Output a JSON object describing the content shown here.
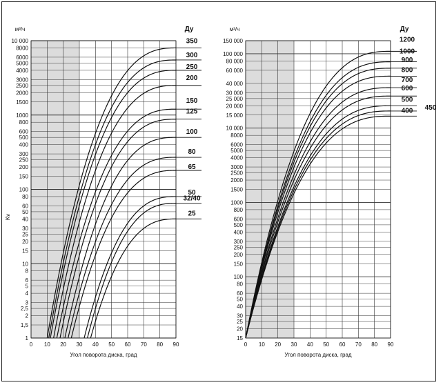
{
  "chart_data": [
    {
      "type": "line",
      "unit_label": "м³/ч",
      "dn_label": "Ду",
      "ylabel": "Kv",
      "xlabel": "Угол поворота диска, град",
      "xlim": [
        0,
        90
      ],
      "ylim": [
        1,
        10000
      ],
      "yscale": "log",
      "grid": true,
      "shaded_band_x": [
        0,
        30
      ],
      "x_ticks": [
        "0",
        "10",
        "20",
        "30",
        "40",
        "50",
        "60",
        "70",
        "80",
        "90"
      ],
      "y_ticks": [
        {
          "v": 1,
          "t": "1"
        },
        {
          "v": 1.5,
          "t": "1,5"
        },
        {
          "v": 2,
          "t": "2"
        },
        {
          "v": 2.5,
          "t": "2,5"
        },
        {
          "v": 3,
          "t": "3"
        },
        {
          "v": 4,
          "t": "4"
        },
        {
          "v": 5,
          "t": "5"
        },
        {
          "v": 6,
          "t": "6"
        },
        {
          "v": 8,
          "t": "8"
        },
        {
          "v": 10,
          "t": "10"
        },
        {
          "v": 15,
          "t": "15"
        },
        {
          "v": 20,
          "t": "20"
        },
        {
          "v": 25,
          "t": "25"
        },
        {
          "v": 30,
          "t": "30"
        },
        {
          "v": 40,
          "t": "40"
        },
        {
          "v": 50,
          "t": "50"
        },
        {
          "v": 60,
          "t": "60"
        },
        {
          "v": 80,
          "t": "80"
        },
        {
          "v": 100,
          "t": "100"
        },
        {
          "v": 150,
          "t": "150"
        },
        {
          "v": 200,
          "t": "200"
        },
        {
          "v": 250,
          "t": "250"
        },
        {
          "v": 300,
          "t": "300"
        },
        {
          "v": 400,
          "t": "400"
        },
        {
          "v": 500,
          "t": "500"
        },
        {
          "v": 600,
          "t": "600"
        },
        {
          "v": 800,
          "t": "800"
        },
        {
          "v": 1000,
          "t": "1000"
        },
        {
          "v": 1500,
          "t": "1500"
        },
        {
          "v": 2000,
          "t": "2000"
        },
        {
          "v": 2500,
          "t": "2500"
        },
        {
          "v": 3000,
          "t": "3000"
        },
        {
          "v": 4000,
          "t": "4000"
        },
        {
          "v": 5000,
          "t": "5000"
        },
        {
          "v": 6000,
          "t": "6000"
        },
        {
          "v": 8000,
          "t": "8000"
        },
        {
          "v": 10000,
          "t": "10 000"
        }
      ],
      "series": [
        {
          "name": "350",
          "x_start": 10,
          "kv_max": 8000
        },
        {
          "name": "300",
          "x_start": 11,
          "kv_max": 5500
        },
        {
          "name": "250",
          "x_start": 12,
          "kv_max": 4000
        },
        {
          "name": "200",
          "x_start": 14,
          "kv_max": 2500
        },
        {
          "name": "150",
          "x_start": 16,
          "kv_max": 1200
        },
        {
          "name": "125",
          "x_start": 18,
          "kv_max": 880
        },
        {
          "name": "100",
          "x_start": 21,
          "kv_max": 500
        },
        {
          "name": "80",
          "x_start": 23,
          "kv_max": 270
        },
        {
          "name": "65",
          "x_start": 25,
          "kv_max": 180
        },
        {
          "name": "50",
          "x_start": 33,
          "kv_max": 80
        },
        {
          "name": "32/40",
          "x_start": 35,
          "kv_max": 65
        },
        {
          "name": "25",
          "x_start": 37,
          "kv_max": 40
        }
      ]
    },
    {
      "type": "line",
      "unit_label": "м³/ч",
      "dn_label": "Ду",
      "ylabel": "",
      "xlabel": "Угол поворота диска, град",
      "xlim": [
        0,
        90
      ],
      "ylim": [
        15,
        150000
      ],
      "yscale": "log",
      "grid": true,
      "shaded_band_x": [
        0,
        30
      ],
      "x_ticks": [
        "0",
        "10",
        "20",
        "30",
        "40",
        "50",
        "60",
        "70",
        "80",
        "90"
      ],
      "y_ticks": [
        {
          "v": 15,
          "t": "15"
        },
        {
          "v": 20,
          "t": "20"
        },
        {
          "v": 25,
          "t": "25"
        },
        {
          "v": 30,
          "t": "30"
        },
        {
          "v": 40,
          "t": "40"
        },
        {
          "v": 50,
          "t": "50"
        },
        {
          "v": 60,
          "t": "60"
        },
        {
          "v": 80,
          "t": "80"
        },
        {
          "v": 100,
          "t": "100"
        },
        {
          "v": 150,
          "t": "150"
        },
        {
          "v": 200,
          "t": "200"
        },
        {
          "v": 250,
          "t": "250"
        },
        {
          "v": 300,
          "t": "300"
        },
        {
          "v": 400,
          "t": "400"
        },
        {
          "v": 500,
          "t": "500"
        },
        {
          "v": 600,
          "t": "600"
        },
        {
          "v": 800,
          "t": "800"
        },
        {
          "v": 1000,
          "t": "1000"
        },
        {
          "v": 1500,
          "t": "1500"
        },
        {
          "v": 2000,
          "t": "2000"
        },
        {
          "v": 2500,
          "t": "2500"
        },
        {
          "v": 3000,
          "t": "3000"
        },
        {
          "v": 4000,
          "t": "4000"
        },
        {
          "v": 5000,
          "t": "5000"
        },
        {
          "v": 6000,
          "t": "6000"
        },
        {
          "v": 8000,
          "t": "8000"
        },
        {
          "v": 10000,
          "t": "10 000"
        },
        {
          "v": 15000,
          "t": "15 000"
        },
        {
          "v": 20000,
          "t": "20 000"
        },
        {
          "v": 25000,
          "t": "25 000"
        },
        {
          "v": 30000,
          "t": "30 000"
        },
        {
          "v": 40000,
          "t": "40 000"
        },
        {
          "v": 60000,
          "t": "60 000"
        },
        {
          "v": 80000,
          "t": "80 000"
        },
        {
          "v": 100000,
          "t": "100 000"
        },
        {
          "v": 150000,
          "t": "150 000"
        }
      ],
      "series": [
        {
          "name": "1200",
          "x_start": 0,
          "kv_max": 108000
        },
        {
          "name": "1000",
          "x_start": 0,
          "kv_max": 78000
        },
        {
          "name": "900",
          "x_start": 0,
          "kv_max": 64000
        },
        {
          "name": "800",
          "x_start": 0,
          "kv_max": 50000
        },
        {
          "name": "700",
          "x_start": 0,
          "kv_max": 35000
        },
        {
          "name": "600",
          "x_start": 0,
          "kv_max": 27000
        },
        {
          "name": "500",
          "x_start": 0,
          "kv_max": 20000
        },
        {
          "name": "450",
          "x_start": 0,
          "kv_max": 17000
        },
        {
          "name": "400",
          "x_start": 0,
          "kv_max": 14500
        }
      ]
    }
  ]
}
